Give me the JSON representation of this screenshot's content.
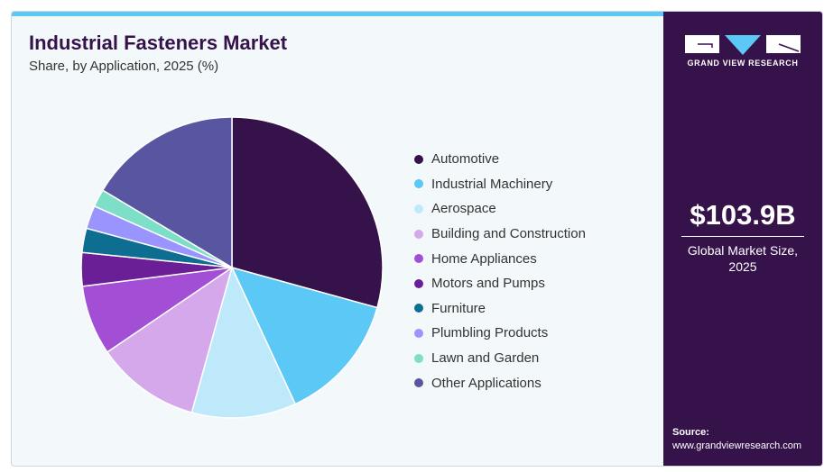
{
  "header": {
    "title": "Industrial Fasteners Market",
    "subtitle": "Share, by Application, 2025 (%)"
  },
  "side": {
    "brand": "GRAND VIEW RESEARCH",
    "market_size": "$103.9B",
    "caption_line1": "Global Market Size,",
    "caption_line2": "2025",
    "source_label": "Source:",
    "source_url": "www.grandviewresearch.com"
  },
  "chart_data": {
    "type": "pie",
    "title": "Industrial Fasteners Market",
    "subtitle": "Share, by Application, 2025 (%)",
    "legend_position": "right",
    "start_angle": "12 o'clock, clockwise",
    "categories": [
      "Automotive",
      "Industrial Machinery",
      "Aerospace",
      "Building and Construction",
      "Home Appliances",
      "Motors and Pumps",
      "Furniture",
      "Plumbling Products",
      "Lawn and Garden",
      "Other Applications"
    ],
    "values": [
      29.3,
      13.8,
      11.2,
      11.2,
      7.5,
      3.6,
      2.6,
      2.5,
      1.9,
      16.4
    ],
    "colors": [
      "#35124a",
      "#5bc8f5",
      "#bde9fa",
      "#d4a8ea",
      "#a24fd6",
      "#6a1f96",
      "#0e6e91",
      "#9a94ff",
      "#7ddfc7",
      "#5856a1"
    ]
  }
}
